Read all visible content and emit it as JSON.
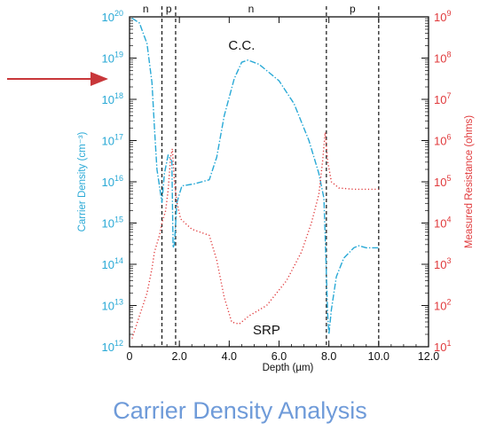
{
  "caption": "Carrier Density Analysis",
  "chart_data": {
    "type": "line",
    "xlabel": "Depth (µm)",
    "ylabel_left": "Carrier Density (cm⁻³)",
    "ylabel_right": "Measured Resistance (ohms)",
    "xlim": [
      0,
      12
    ],
    "x_ticks": [
      {
        "value": 0,
        "label": "0"
      },
      {
        "value": 2,
        "label": "2.0"
      },
      {
        "value": 4,
        "label": "4.0"
      },
      {
        "value": 6,
        "label": "6.0"
      },
      {
        "value": 8,
        "label": "8.0"
      },
      {
        "value": 10,
        "label": "10.0"
      },
      {
        "value": 12,
        "label": "12.0"
      }
    ],
    "y_left": {
      "scale": "log",
      "exp_range": [
        12,
        20
      ],
      "base_label": "10",
      "color": "#29a9d6"
    },
    "y_right": {
      "scale": "log",
      "exp_range": [
        1,
        9
      ],
      "base_label": "10",
      "color": "#e0393b"
    },
    "regions": [
      {
        "label": "n",
        "x_start": 0,
        "x_end": 1.3
      },
      {
        "label": "p",
        "x_start": 1.3,
        "x_end": 1.85
      },
      {
        "label": "n",
        "x_start": 1.85,
        "x_end": 7.9
      },
      {
        "label": "p",
        "x_start": 7.9,
        "x_end": 10.0
      }
    ],
    "boundaries": [
      1.3,
      1.85,
      7.9,
      10.0
    ],
    "series": [
      {
        "name": "C.C.",
        "axis": "left",
        "color": "#29a9d6",
        "style": "dashdot",
        "points": [
          [
            0.1,
            19.97
          ],
          [
            0.4,
            19.85
          ],
          [
            0.7,
            19.35
          ],
          [
            0.9,
            18.4
          ],
          [
            1.0,
            17.3
          ],
          [
            1.1,
            16.3
          ],
          [
            1.2,
            15.9
          ],
          [
            1.3,
            15.5
          ],
          [
            1.4,
            16.2
          ],
          [
            1.55,
            16.65
          ],
          [
            1.7,
            16.5
          ],
          [
            1.75,
            14.4
          ],
          [
            1.8,
            14.5
          ],
          [
            1.9,
            15.5
          ],
          [
            2.1,
            15.9
          ],
          [
            2.6,
            15.95
          ],
          [
            3.2,
            16.05
          ],
          [
            3.5,
            16.6
          ],
          [
            3.8,
            17.6
          ],
          [
            4.2,
            18.5
          ],
          [
            4.5,
            18.9
          ],
          [
            4.75,
            18.95
          ],
          [
            5.2,
            18.85
          ],
          [
            6.0,
            18.45
          ],
          [
            6.6,
            17.9
          ],
          [
            7.2,
            17.0
          ],
          [
            7.6,
            16.2
          ],
          [
            7.8,
            15.6
          ],
          [
            7.95,
            12.8
          ],
          [
            8.0,
            12.3
          ],
          [
            8.1,
            12.9
          ],
          [
            8.3,
            13.7
          ],
          [
            8.6,
            14.15
          ],
          [
            9.0,
            14.4
          ],
          [
            9.2,
            14.45
          ],
          [
            9.5,
            14.4
          ],
          [
            10.0,
            14.4
          ]
        ]
      },
      {
        "name": "SRP",
        "axis": "right",
        "color": "#e0393b",
        "style": "dotted",
        "points": [
          [
            0.1,
            1.2
          ],
          [
            0.4,
            1.75
          ],
          [
            0.7,
            2.3
          ],
          [
            0.9,
            2.9
          ],
          [
            1.0,
            3.3
          ],
          [
            1.1,
            3.5
          ],
          [
            1.2,
            3.7
          ],
          [
            1.3,
            4.0
          ],
          [
            1.45,
            4.3
          ],
          [
            1.55,
            4.8
          ],
          [
            1.65,
            5.6
          ],
          [
            1.72,
            5.8
          ],
          [
            1.8,
            5.0
          ],
          [
            1.9,
            4.5
          ],
          [
            2.05,
            4.1
          ],
          [
            2.5,
            3.85
          ],
          [
            3.2,
            3.7
          ],
          [
            3.5,
            3.1
          ],
          [
            3.8,
            2.2
          ],
          [
            4.1,
            1.6
          ],
          [
            4.4,
            1.55
          ],
          [
            4.8,
            1.75
          ],
          [
            5.5,
            2.0
          ],
          [
            6.3,
            2.6
          ],
          [
            6.9,
            3.3
          ],
          [
            7.3,
            4.0
          ],
          [
            7.6,
            4.7
          ],
          [
            7.75,
            5.5
          ],
          [
            7.85,
            6.2
          ],
          [
            7.95,
            5.5
          ],
          [
            8.1,
            5.0
          ],
          [
            8.4,
            4.85
          ],
          [
            9.0,
            4.82
          ],
          [
            10.0,
            4.82
          ]
        ]
      }
    ],
    "annotations": [
      {
        "text": "C.C.",
        "x": 4.5,
        "y": 19.2
      },
      {
        "text": "SRP",
        "x": 5.5,
        "y": 12.3
      }
    ]
  }
}
